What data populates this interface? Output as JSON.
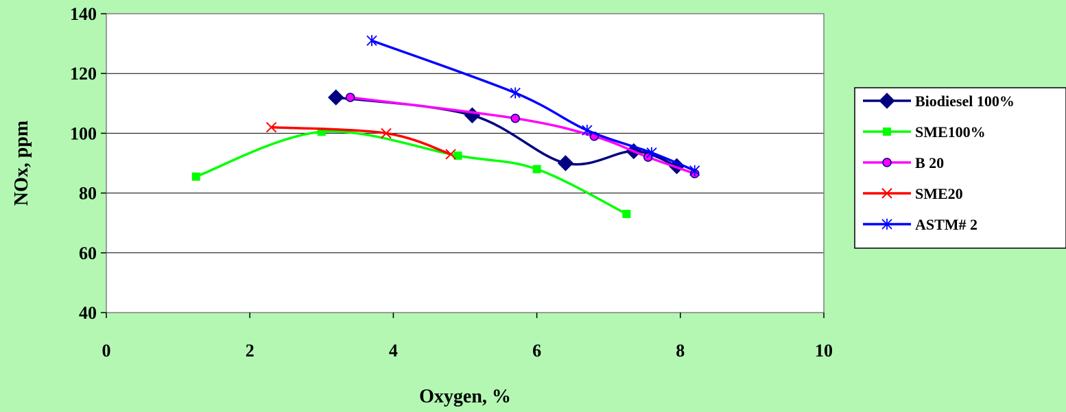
{
  "chart_data": {
    "type": "line",
    "title": "",
    "xlabel": "Oxygen, %",
    "ylabel": "NOx, ppm",
    "xlim": [
      0,
      10
    ],
    "ylim": [
      40,
      140
    ],
    "xticks": [
      "0",
      "2",
      "4",
      "6",
      "8",
      "10"
    ],
    "yticks": [
      "40",
      "60",
      "80",
      "100",
      "120",
      "140"
    ],
    "grid": "horizontal",
    "legend_position": "right",
    "series": [
      {
        "name": "Biodiesel 100%",
        "color": "#000080",
        "marker": "diamond",
        "x": [
          3.2,
          5.1,
          6.4,
          7.35,
          7.95
        ],
        "y": [
          112,
          106,
          90,
          94,
          89
        ]
      },
      {
        "name": "SME100%",
        "color": "#00ff00",
        "marker": "square",
        "x": [
          1.25,
          3.0,
          4.9,
          6.0,
          7.25
        ],
        "y": [
          85.5,
          100.5,
          92.5,
          88,
          73
        ]
      },
      {
        "name": "B 20",
        "color": "#ff00ff",
        "marker": "circle",
        "x": [
          3.4,
          5.7,
          6.8,
          7.55,
          8.2
        ],
        "y": [
          112,
          105,
          99,
          92,
          86.5
        ]
      },
      {
        "name": "SME20",
        "color": "#ff0000",
        "marker": "x",
        "x": [
          2.3,
          3.9,
          4.8
        ],
        "y": [
          102,
          100,
          93
        ]
      },
      {
        "name": "ASTM# 2",
        "color": "#0000ff",
        "marker": "asterisk",
        "x": [
          3.7,
          5.7,
          6.7,
          7.6,
          8.2
        ],
        "y": [
          131,
          113.5,
          101,
          93.5,
          87.5
        ]
      }
    ]
  }
}
